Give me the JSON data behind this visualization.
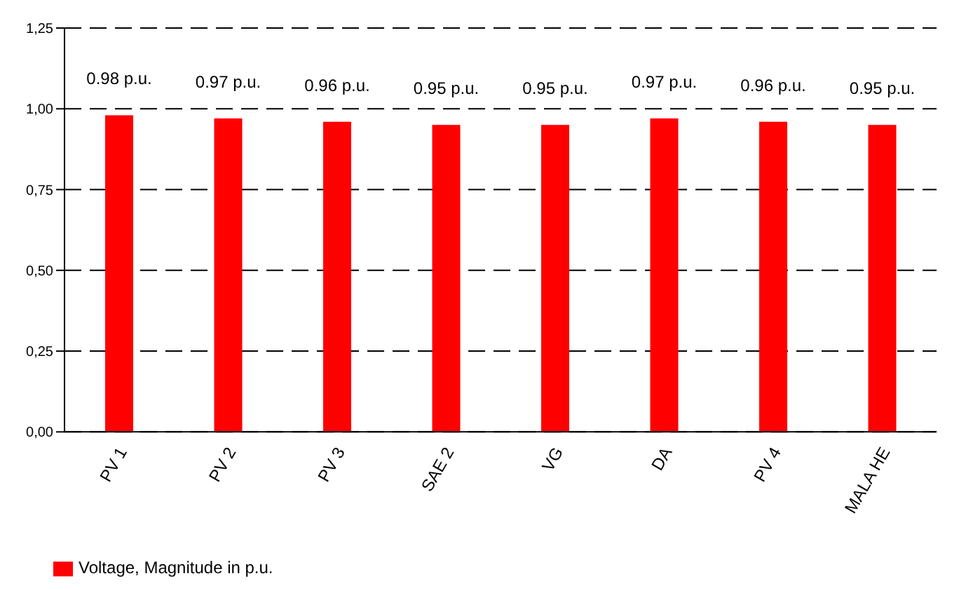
{
  "chart_data": {
    "type": "bar",
    "categories": [
      "PV 1",
      "PV 2",
      "PV 3",
      "SAE 2",
      "VG",
      "DA",
      "PV 4",
      "MALA HE"
    ],
    "series": [
      {
        "name": "Voltage, Magnitude in p.u.",
        "color": "#ff0000",
        "values": [
          0.98,
          0.97,
          0.96,
          0.95,
          0.95,
          0.97,
          0.96,
          0.95
        ],
        "value_labels": [
          "0.98 p.u.",
          "0.97 p.u.",
          "0.96 p.u.",
          "0.95 p.u.",
          "0.95 p.u.",
          "0.97 p.u.",
          "0.96 p.u.",
          "0.95 p.u."
        ]
      }
    ],
    "ylim": [
      0,
      1.25
    ],
    "yticks": [
      {
        "value": 0,
        "label": "0,00"
      },
      {
        "value": 0.25,
        "label": "0,25"
      },
      {
        "value": 0.5,
        "label": "0,50"
      },
      {
        "value": 0.75,
        "label": "0,75"
      },
      {
        "value": 1,
        "label": "1,00"
      },
      {
        "value": 1.25,
        "label": "1,25"
      }
    ],
    "grid": "y",
    "legend": "bottom left"
  }
}
